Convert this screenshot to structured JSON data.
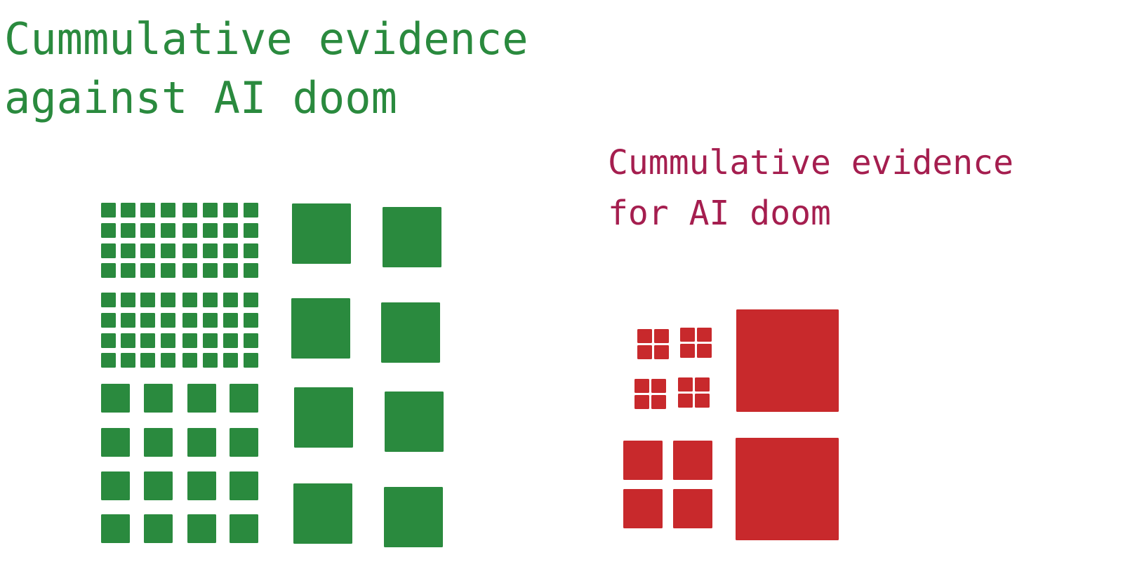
{
  "colors": {
    "against": "#2a8a3e",
    "for": "#c8292c",
    "title_for": "#a51e4f",
    "background": "#ffffff"
  },
  "panels": [
    {
      "id": "against",
      "title_lines": [
        "Cummulative evidence",
        "against AI doom"
      ]
    },
    {
      "id": "for",
      "title_lines": [
        "Cummulative evidence",
        "for AI doom"
      ]
    }
  ]
}
